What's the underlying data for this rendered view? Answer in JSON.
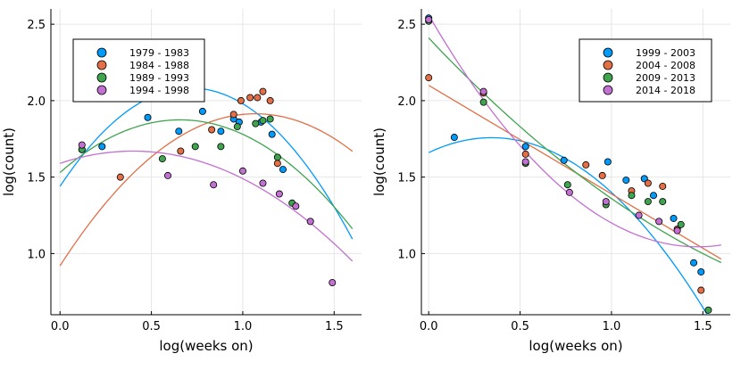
{
  "chart_data": [
    {
      "type": "scatter",
      "title": "",
      "xlabel": "log(weeks on)",
      "ylabel": "log(count)",
      "xlim": [
        -0.05,
        1.65
      ],
      "ylim": [
        0.6,
        2.6
      ],
      "xticks": [
        0.0,
        0.5,
        1.0,
        1.5
      ],
      "xtick_labels": [
        "0.0",
        "0.5",
        "1.0",
        "1.5"
      ],
      "yticks": [
        1.0,
        1.5,
        2.0,
        2.5
      ],
      "ytick_labels": [
        "1.0",
        "1.5",
        "2.0",
        "2.5"
      ],
      "grid": true,
      "legend_position": "top-left",
      "fit_xrange": [
        0.0,
        1.6
      ],
      "series": [
        {
          "name": "1979 -  1983",
          "color": "#009AFA",
          "points": [
            [
              0.12,
              1.68
            ],
            [
              0.23,
              1.7
            ],
            [
              0.48,
              1.89
            ],
            [
              0.65,
              1.8
            ],
            [
              0.78,
              1.93
            ],
            [
              0.88,
              1.8
            ],
            [
              0.95,
              1.88
            ],
            [
              0.98,
              1.86
            ],
            [
              1.1,
              1.86
            ],
            [
              1.16,
              1.78
            ],
            [
              1.22,
              1.55
            ]
          ],
          "fit": [
            1.44,
            1.8,
            -1.26
          ]
        },
        {
          "name": "1984 -  1988",
          "color": "#E36F47",
          "points": [
            [
              0.33,
              1.5
            ],
            [
              0.66,
              1.67
            ],
            [
              0.83,
              1.81
            ],
            [
              0.95,
              1.91
            ],
            [
              0.99,
              2.0
            ],
            [
              1.04,
              2.02
            ],
            [
              1.08,
              2.02
            ],
            [
              1.11,
              2.06
            ],
            [
              1.15,
              2.0
            ],
            [
              1.19,
              1.59
            ]
          ],
          "fit": [
            0.92,
            1.86,
            -0.87
          ]
        },
        {
          "name": "1989 -  1993",
          "color": "#3EA44E",
          "points": [
            [
              0.12,
              1.68
            ],
            [
              0.56,
              1.62
            ],
            [
              0.74,
              1.7
            ],
            [
              0.88,
              1.7
            ],
            [
              0.97,
              1.83
            ],
            [
              1.07,
              1.85
            ],
            [
              1.11,
              1.87
            ],
            [
              1.15,
              1.88
            ],
            [
              1.19,
              1.63
            ],
            [
              1.27,
              1.33
            ]
          ],
          "fit": [
            1.53,
            1.05,
            -0.8
          ]
        },
        {
          "name": "1994 -  1998",
          "color": "#C271D2",
          "points": [
            [
              0.12,
              1.71
            ],
            [
              0.59,
              1.51
            ],
            [
              0.84,
              1.45
            ],
            [
              1.0,
              1.54
            ],
            [
              1.11,
              1.46
            ],
            [
              1.2,
              1.39
            ],
            [
              1.29,
              1.31
            ],
            [
              1.37,
              1.21
            ],
            [
              1.49,
              0.81
            ]
          ],
          "fit": [
            1.59,
            0.4,
            -0.5
          ]
        }
      ]
    },
    {
      "type": "scatter",
      "title": "",
      "xlabel": "log(weeks on)",
      "ylabel": "log(count)",
      "xlim": [
        -0.04,
        1.65
      ],
      "ylim": [
        0.6,
        2.6
      ],
      "xticks": [
        0.0,
        0.5,
        1.0,
        1.5
      ],
      "xtick_labels": [
        "0.0",
        "0.5",
        "1.0",
        "1.5"
      ],
      "yticks": [
        1.0,
        1.5,
        2.0,
        2.5
      ],
      "ytick_labels": [
        "1.0",
        "1.5",
        "2.0",
        "2.5"
      ],
      "grid": true,
      "legend_position": "top-right",
      "fit_xrange": [
        0.0,
        1.6
      ],
      "series": [
        {
          "name": "1999 -  2003",
          "color": "#009AFA",
          "points": [
            [
              0.0,
              2.54
            ],
            [
              0.14,
              1.76
            ],
            [
              0.53,
              1.7
            ],
            [
              0.74,
              1.61
            ],
            [
              0.98,
              1.6
            ],
            [
              1.08,
              1.48
            ],
            [
              1.18,
              1.49
            ],
            [
              1.23,
              1.38
            ],
            [
              1.34,
              1.23
            ],
            [
              1.45,
              0.94
            ],
            [
              1.49,
              0.88
            ]
          ],
          "fit": [
            1.66,
            0.57,
            -0.83
          ]
        },
        {
          "name": "2004 -  2008",
          "color": "#E36F47",
          "points": [
            [
              0.0,
              2.15
            ],
            [
              0.3,
              2.05
            ],
            [
              0.53,
              1.65
            ],
            [
              0.86,
              1.58
            ],
            [
              0.95,
              1.51
            ],
            [
              1.11,
              1.41
            ],
            [
              1.2,
              1.46
            ],
            [
              1.28,
              1.44
            ],
            [
              1.36,
              1.16
            ],
            [
              1.49,
              0.76
            ]
          ],
          "fit": [
            2.1,
            -0.71,
            0.0
          ]
        },
        {
          "name": "2009 -  2013",
          "color": "#3EA44E",
          "points": [
            [
              0.0,
              2.52
            ],
            [
              0.3,
              1.99
            ],
            [
              0.53,
              1.59
            ],
            [
              0.76,
              1.45
            ],
            [
              0.97,
              1.32
            ],
            [
              1.11,
              1.38
            ],
            [
              1.2,
              1.34
            ],
            [
              1.28,
              1.34
            ],
            [
              1.38,
              1.19
            ],
            [
              1.53,
              0.63
            ]
          ],
          "fit": [
            2.41,
            -1.27,
            0.22
          ]
        },
        {
          "name": "2014 -  2018",
          "color": "#C271D2",
          "points": [
            [
              0.0,
              2.53
            ],
            [
              0.3,
              2.06
            ],
            [
              0.53,
              1.6
            ],
            [
              0.77,
              1.4
            ],
            [
              0.97,
              1.34
            ],
            [
              1.15,
              1.25
            ],
            [
              1.26,
              1.21
            ],
            [
              1.36,
              1.15
            ]
          ],
          "fit": [
            2.56,
            -2.06,
            0.7
          ]
        }
      ]
    }
  ]
}
